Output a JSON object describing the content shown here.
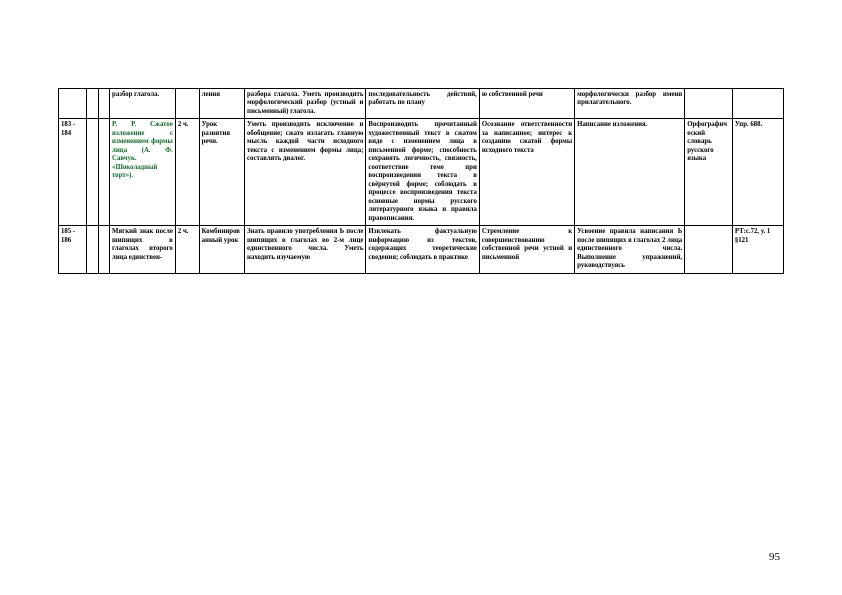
{
  "page_number": "95",
  "rows": [
    {
      "c0": "",
      "c1": "",
      "c2": "",
      "c3": "разбор глагола.",
      "c4": "",
      "c5": "лення",
      "c6": "разбора глагола. Уметь производить морфологический разбор (устный и письменный) глагола.",
      "c7": "последовательность действий, работать по плану",
      "c8": "ю собственной речи",
      "c9": "морфологически разбор имени прилагательного.",
      "c10": "",
      "c11": ""
    },
    {
      "c0": "183 - 184",
      "c1": "",
      "c2": "",
      "c3": "Р. Р. Сжатое изложение с изменением формы лица (А. Ф. Савчук. «Шоколадный торт»).",
      "c3_green": true,
      "c4": "2 ч.",
      "c5": "Урок развития речи.",
      "c6": "Уметь производить исключение и обобщение; сжато излагать главную мысль каждой части исходного текста с изменением формы лица; составлять диалог.",
      "c7": "Воспроизводить прочитанный художественный текст в сжатом виде с изменением лица в письменной форме; способность сохранять логичность, связность, соответствие теме при воспроизведении текста в свёрнутой форме; соблюдать в процессе воспроизведения текста основные нормы русского литературного языка и правила правописания.",
      "c8": "Осознание ответственности за написанное; интерес к созданию сжатой формы исходного текста",
      "c9": "Написание изложения.",
      "c10": "Орфографический словарь русского языка",
      "c11": "Упр. 688."
    },
    {
      "c0": "185 - 186",
      "c1": "",
      "c2": "",
      "c3": "Мягкий знак после шипящих в глаголах второго лица единствен-",
      "c4": "2 ч.",
      "c5": "Комбинированный урок",
      "c6": "Знать правило употребления Ь после шипящих в глаголах во 2-м лице единственного числа. Уметь находить изучаемую",
      "c7": "Извлекать фактуальную информацию из текстов, содержащих теоретические сведения; соблюдать в практике",
      "c8": "Стремление к совершенствованию собственной речи устной и письменной",
      "c9": "Усвоение правила написания Ь после шипящих в глаголах 2 лица единственного числа. Выполнение упражнений, руководствуясь",
      "c10": "",
      "c11": "РТ:с.72, у. 1 §121"
    }
  ]
}
